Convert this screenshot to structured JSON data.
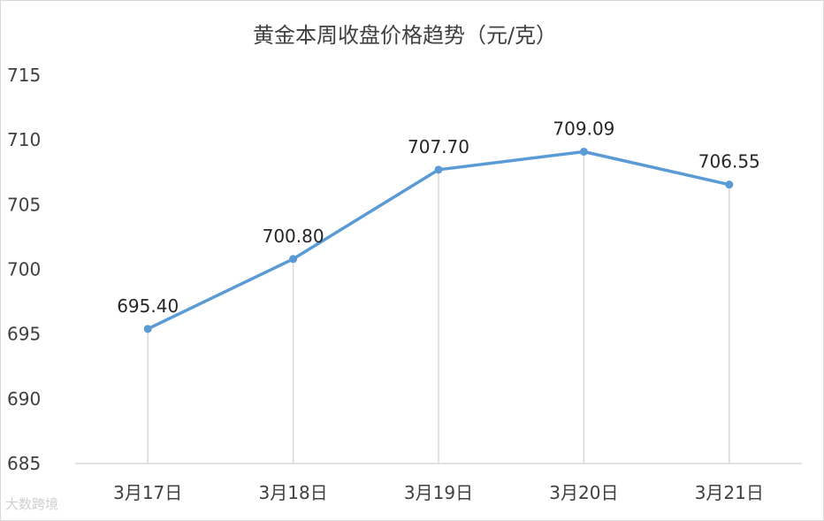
{
  "chart_data": {
    "type": "line",
    "title": "黄金本周收盘价格趋势（元/克）",
    "categories": [
      "3月17日",
      "3月18日",
      "3月19日",
      "3月20日",
      "3月21日"
    ],
    "series": [
      {
        "values": [
          695.4,
          700.8,
          707.7,
          709.09,
          706.55
        ]
      }
    ],
    "data_labels": [
      "695.40",
      "700.80",
      "707.70",
      "709.09",
      "706.55"
    ],
    "yticks": [
      "685",
      "690",
      "695",
      "700",
      "705",
      "710",
      "715"
    ],
    "ylim": [
      685,
      715
    ],
    "line_color": "#5b9bd5",
    "drop_line_color": "#d9d9d9",
    "grid": false
  },
  "watermark": "大数跨境"
}
